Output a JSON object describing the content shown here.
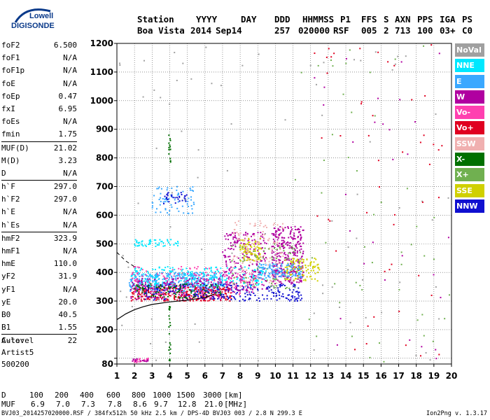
{
  "logo": {
    "line1": "Lowell",
    "line2": "DIGISONDE"
  },
  "header": {
    "labels": [
      "Station",
      "YYYY",
      "DAY",
      "DDD",
      "HHMMSS",
      "P1",
      "FFS",
      "S",
      "AXN",
      "PPS",
      "IGA",
      "PS"
    ],
    "values": [
      "Boa Vista",
      "2014",
      "Sep14",
      "257",
      "020000",
      "RSF",
      "005",
      "2",
      "713",
      "100",
      "03+",
      "C0"
    ]
  },
  "params": [
    {
      "label": "foF2",
      "value": "6.500"
    },
    {
      "label": "foF1",
      "value": "N/A"
    },
    {
      "label": "foF1p",
      "value": "N/A"
    },
    {
      "label": "foE",
      "value": "N/A"
    },
    {
      "label": "foEp",
      "value": "0.47"
    },
    {
      "label": "fxI",
      "value": "6.95"
    },
    {
      "label": "foEs",
      "value": "N/A"
    },
    {
      "label": "fmin",
      "value": "1.75"
    },
    {
      "label": "MUF(D)",
      "value": "21.02",
      "sep": true
    },
    {
      "label": "M(D)",
      "value": "3.23"
    },
    {
      "label": "D",
      "value": "N/A"
    },
    {
      "label": "h`F",
      "value": "297.0",
      "sep": true
    },
    {
      "label": "h`F2",
      "value": "297.0"
    },
    {
      "label": "h`E",
      "value": "N/A"
    },
    {
      "label": "h`Es",
      "value": "N/A"
    },
    {
      "label": "hmF2",
      "value": "323.9",
      "sep": true
    },
    {
      "label": "hmF1",
      "value": "N/A"
    },
    {
      "label": "hmE",
      "value": "110.0"
    },
    {
      "label": "yF2",
      "value": "31.9"
    },
    {
      "label": "yF1",
      "value": "N/A"
    },
    {
      "label": "yE",
      "value": "20.0"
    },
    {
      "label": "B0",
      "value": "40.5"
    },
    {
      "label": "B1",
      "value": "1.55"
    },
    {
      "label": "C-level",
      "value": "22",
      "sep": true
    }
  ],
  "auto": {
    "line1": "Auto:",
    "line2": "Artist5",
    "line3": "500200"
  },
  "legend": [
    {
      "label": "NoVal",
      "color": "#a0a0a0"
    },
    {
      "label": "NNE",
      "color": "#00e8ff"
    },
    {
      "label": "E",
      "color": "#3aa8ff"
    },
    {
      "label": "W",
      "color": "#b000a0"
    },
    {
      "label": "Vo-",
      "color": "#ff40b0"
    },
    {
      "label": "Vo+",
      "color": "#e00020"
    },
    {
      "label": "SSW",
      "color": "#f0b0b0"
    },
    {
      "label": "X-",
      "color": "#007000"
    },
    {
      "label": "X+",
      "color": "#70b050"
    },
    {
      "label": "SSE",
      "color": "#d0d000"
    },
    {
      "label": "NNW",
      "color": "#1010d0"
    }
  ],
  "muf_table": {
    "d_label": "D",
    "muf_label": "MUF",
    "d_values": [
      "100",
      "200",
      "400",
      "600",
      "800",
      "1000",
      "1500",
      "3000"
    ],
    "muf_values": [
      "6.9",
      "7.0",
      "7.3",
      "7.8",
      "8.6",
      "9.7",
      "12.8",
      "21.0"
    ],
    "d_unit": "[km]",
    "muf_unit": "[MHz]"
  },
  "footer": {
    "text": "BVJ03_2014257020000.RSF / 384fx512h 50 kHz 2.5 km / DPS-4D BVJ03 003 / 2.8 N 299.3 E",
    "version": "Ion2Png v. 1.3.17"
  },
  "chart_data": {
    "type": "scatter",
    "title": "",
    "xlabel": "",
    "ylabel": "",
    "xlim": [
      1,
      20
    ],
    "ylim": [
      80,
      1200
    ],
    "x_ticks": [
      1,
      2,
      3,
      4,
      5,
      6,
      7,
      8,
      9,
      10,
      11,
      12,
      13,
      14,
      15,
      16,
      17,
      18,
      19,
      20
    ],
    "y_ticks": [
      80,
      100,
      200,
      300,
      400,
      500,
      600,
      700,
      800,
      900,
      1000,
      1100,
      1200
    ],
    "y_tick_labels": [
      "80",
      "",
      "200",
      "300",
      "400",
      "500",
      "600",
      "700",
      "800",
      "900",
      "1000",
      "1100",
      "1200"
    ],
    "grid": true,
    "legend_position": "right",
    "profile_curve": {
      "name": "",
      "x": [
        1.0,
        1.5,
        2.0,
        2.5,
        3.0,
        4.0,
        5.0,
        6.0,
        6.5
      ],
      "y": [
        235,
        255,
        270,
        280,
        288,
        297,
        303,
        312,
        324
      ]
    },
    "dashed_curve": {
      "name": "",
      "x": [
        1.0,
        1.5,
        2.0
      ],
      "y": [
        470,
        440,
        420
      ]
    },
    "clusters": [
      {
        "group": "E",
        "x_range": [
          1.7,
          7.0
        ],
        "y_range": [
          330,
          400
        ],
        "count": 420
      },
      {
        "group": "NNE",
        "x_range": [
          1.8,
          9.5
        ],
        "y_range": [
          350,
          420
        ],
        "count": 250
      },
      {
        "group": "Vo+",
        "x_range": [
          1.8,
          7.5
        ],
        "y_range": [
          300,
          350
        ],
        "count": 300
      },
      {
        "group": "W",
        "x_range": [
          1.8,
          7.0
        ],
        "y_range": [
          305,
          380
        ],
        "count": 200
      },
      {
        "group": "NNW",
        "x_range": [
          2.5,
          11.5
        ],
        "y_range": [
          300,
          360
        ],
        "count": 260
      },
      {
        "group": "X-",
        "x_range": [
          2.0,
          7.0
        ],
        "y_range": [
          310,
          360
        ],
        "count": 100
      },
      {
        "group": "W",
        "x_range": [
          7.0,
          9.5
        ],
        "y_range": [
          330,
          540
        ],
        "count": 230
      },
      {
        "group": "W",
        "x_range": [
          9.8,
          11.6
        ],
        "y_range": [
          360,
          560
        ],
        "count": 330
      },
      {
        "group": "SSE",
        "x_range": [
          8.0,
          9.2
        ],
        "y_range": [
          440,
          520
        ],
        "count": 90
      },
      {
        "group": "SSE",
        "x_range": [
          10.5,
          12.5
        ],
        "y_range": [
          370,
          450
        ],
        "count": 110
      },
      {
        "group": "SSW",
        "x_range": [
          7.5,
          10.5
        ],
        "y_range": [
          350,
          580
        ],
        "count": 140
      },
      {
        "group": "Vo-",
        "x_range": [
          1.8,
          9.0
        ],
        "y_range": [
          320,
          420
        ],
        "count": 140
      },
      {
        "group": "X+",
        "x_range": [
          7.5,
          11.5
        ],
        "y_range": [
          340,
          500
        ],
        "count": 70
      },
      {
        "group": "E",
        "x_range": [
          9.0,
          11.5
        ],
        "y_range": [
          380,
          430
        ],
        "count": 120
      },
      {
        "group": "NNE",
        "x_range": [
          2.0,
          4.5
        ],
        "y_range": [
          490,
          515
        ],
        "count": 50
      },
      {
        "group": "E",
        "x_range": [
          3.0,
          5.5
        ],
        "y_range": [
          600,
          700
        ],
        "count": 70
      },
      {
        "group": "NNW",
        "x_range": [
          3.5,
          5.0
        ],
        "y_range": [
          640,
          680
        ],
        "count": 30
      },
      {
        "group": "Vo-",
        "x_range": [
          1.8,
          2.8
        ],
        "y_range": [
          85,
          100
        ],
        "count": 20
      },
      {
        "group": "W",
        "x_range": [
          1.8,
          2.8
        ],
        "y_range": [
          88,
          98
        ],
        "count": 15
      },
      {
        "group": "X-",
        "x_range": [
          3.95,
          4.05
        ],
        "y_range": [
          780,
          890
        ],
        "count": 14
      },
      {
        "group": "X-",
        "x_range": [
          3.95,
          4.05
        ],
        "y_range": [
          90,
          300
        ],
        "count": 20
      },
      {
        "group": "NoVal",
        "x_range": [
          1.0,
          20.0
        ],
        "y_range": [
          80,
          1200
        ],
        "count": 90
      },
      {
        "group": "Vo+",
        "x_range": [
          12.0,
          20.0
        ],
        "y_range": [
          80,
          1200
        ],
        "count": 50
      },
      {
        "group": "X+",
        "x_range": [
          11.0,
          20.0
        ],
        "y_range": [
          80,
          1200
        ],
        "count": 50
      },
      {
        "group": "W",
        "x_range": [
          12.0,
          20.0
        ],
        "y_range": [
          80,
          1200
        ],
        "count": 30
      }
    ]
  }
}
